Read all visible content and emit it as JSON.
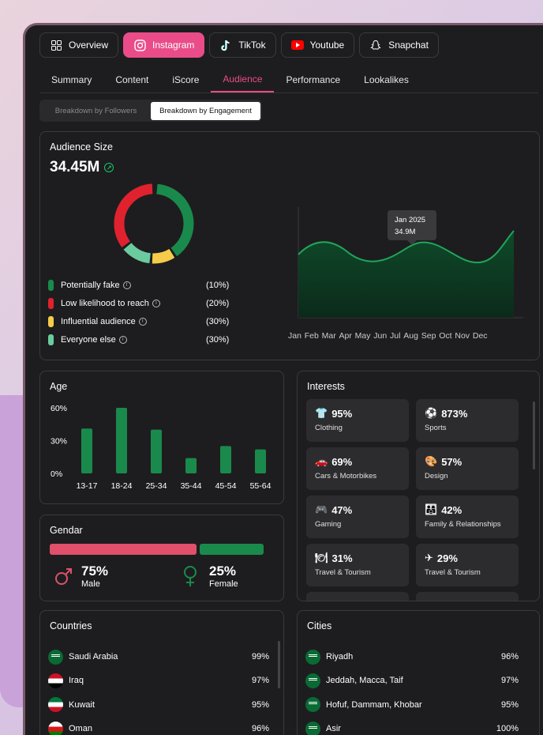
{
  "platform_tabs": [
    {
      "label": "Overview",
      "icon": "grid-icon"
    },
    {
      "label": "Instagram",
      "icon": "instagram-icon",
      "active": true
    },
    {
      "label": "TikTok",
      "icon": "tiktok-icon"
    },
    {
      "label": "Youtube",
      "icon": "youtube-icon"
    },
    {
      "label": "Snapchat",
      "icon": "snapchat-icon"
    }
  ],
  "sub_tabs": [
    {
      "label": "Summary"
    },
    {
      "label": "Content"
    },
    {
      "label": "iScore"
    },
    {
      "label": "Audience",
      "active": true
    },
    {
      "label": "Performance"
    },
    {
      "label": "Lookalikes"
    }
  ],
  "breakdown_toggle": {
    "followers_label": "Breakdown by Followers",
    "engagement_label": "Breakdown by Engagement",
    "selected": "engagement"
  },
  "audience": {
    "title": "Audience Size",
    "total": "34.45M",
    "legend": [
      {
        "label": "Potentially fake",
        "value": "(10%)",
        "color": "#1a8a4c"
      },
      {
        "label": "Low likelihood to reach",
        "value": "(20%)",
        "color": "#e0222e"
      },
      {
        "label": "Influential audience",
        "value": "(30%)",
        "color": "#f5cb4a"
      },
      {
        "label": "Everyone else",
        "value": "(30%)",
        "color": "#6ccb9e"
      }
    ],
    "tooltip": {
      "month": "Jan 2025",
      "value": "34.9M"
    },
    "months": [
      "Jan",
      "Feb",
      "Mar",
      "Apr",
      "May",
      "Jun",
      "Jul",
      "Aug",
      "Sep",
      "Oct",
      "Nov",
      "Dec"
    ]
  },
  "age": {
    "title": "Age",
    "chart_data": {
      "type": "bar",
      "categories": [
        "13-17",
        "18-24",
        "25-34",
        "35-44",
        "45-54",
        "55-64"
      ],
      "values": [
        41,
        60,
        40,
        14,
        25,
        22
      ],
      "yticks": [
        "60%",
        "30%",
        "0%"
      ],
      "ylim": [
        0,
        60
      ],
      "color": "#1a8a4c"
    }
  },
  "gender": {
    "title": "Gendar",
    "male": {
      "percent": "75%",
      "label": "Male",
      "color": "#e0506a",
      "share": 0.75
    },
    "female": {
      "percent": "25%",
      "label": "Female",
      "color": "#1a8a4c",
      "share": 0.25
    }
  },
  "interests": {
    "title": "Interests",
    "items": [
      {
        "icon": "👕",
        "percent": "95%",
        "label": "Clothing"
      },
      {
        "icon": "⚽",
        "percent": "873%",
        "label": "Sports"
      },
      {
        "icon": "🚗",
        "percent": "69%",
        "label": "Cars & Motorbikes"
      },
      {
        "icon": "🎨",
        "percent": "57%",
        "label": "Design"
      },
      {
        "icon": "🎮",
        "percent": "47%",
        "label": "Gaming"
      },
      {
        "icon": "👨‍👩‍👧",
        "percent": "42%",
        "label": "Family & Relationships"
      },
      {
        "icon": "🍽",
        "percent": "31%",
        "label": "Travel & Tourism"
      },
      {
        "icon": "✈",
        "percent": "29%",
        "label": "Travel & Tourism"
      },
      {
        "icon": "",
        "percent": "",
        "label": ""
      },
      {
        "icon": "",
        "percent": "",
        "label": ""
      }
    ]
  },
  "countries": {
    "title": "Countries",
    "items": [
      {
        "name": "Saudi Arabia",
        "value": "99%",
        "flag": "saudi-arabia"
      },
      {
        "name": "Iraq",
        "value": "97%",
        "flag": "iraq"
      },
      {
        "name": "Kuwait",
        "value": "95%",
        "flag": "kuwait"
      },
      {
        "name": "Oman",
        "value": "96%",
        "flag": "oman"
      }
    ]
  },
  "cities": {
    "title": "Cities",
    "items": [
      {
        "name": "Riyadh",
        "value": "96%",
        "flag": "saudi-arabia"
      },
      {
        "name": "Jeddah, Macca, Taif",
        "value": "97%",
        "flag": "saudi-arabia"
      },
      {
        "name": "Hofuf, Dammam, Khobar",
        "value": "95%",
        "flag": "saudi-arabia"
      },
      {
        "name": "Asir",
        "value": "100%",
        "flag": "saudi-arabia"
      }
    ]
  }
}
